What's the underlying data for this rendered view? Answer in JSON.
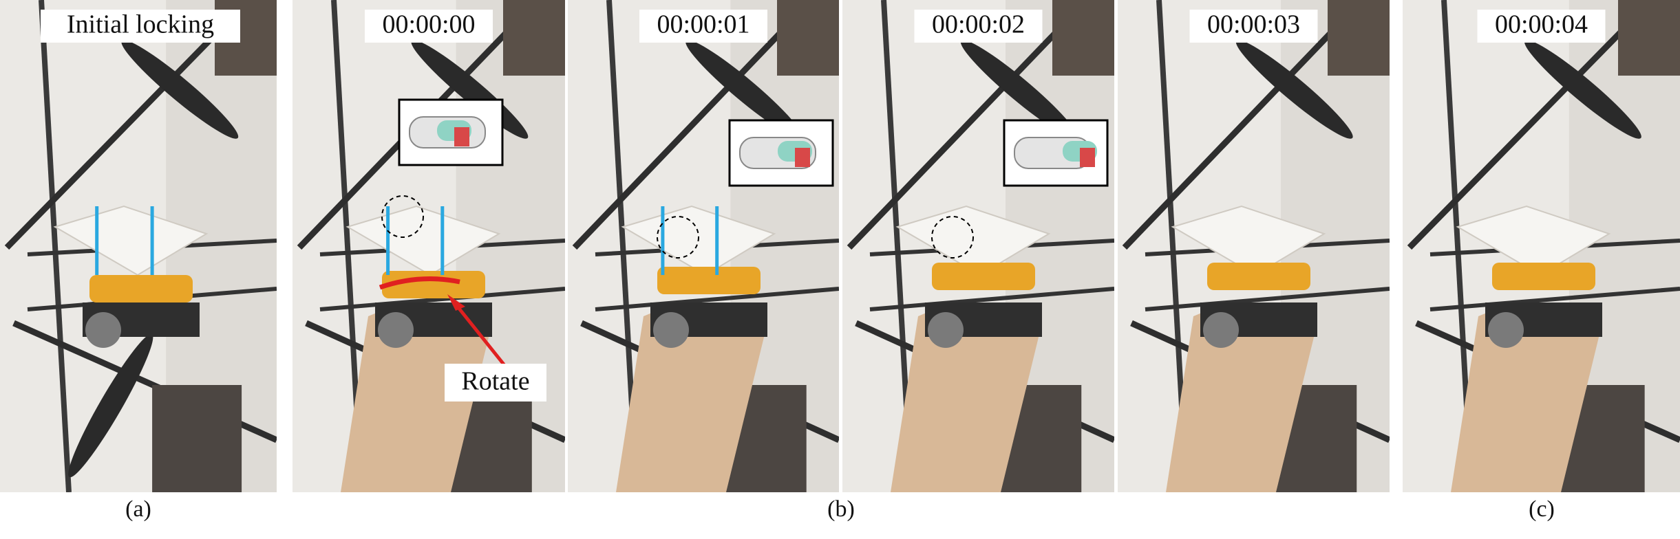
{
  "frames": [
    {
      "caption": "Initial locking"
    },
    {
      "caption": "00:00:00"
    },
    {
      "caption": "00:00:01"
    },
    {
      "caption": "00:00:02"
    },
    {
      "caption": "00:00:03"
    },
    {
      "caption": "00:00:04"
    }
  ],
  "annotation": "Rotate",
  "subfigure_labels": [
    "(a)",
    "(b)",
    "(c)"
  ]
}
